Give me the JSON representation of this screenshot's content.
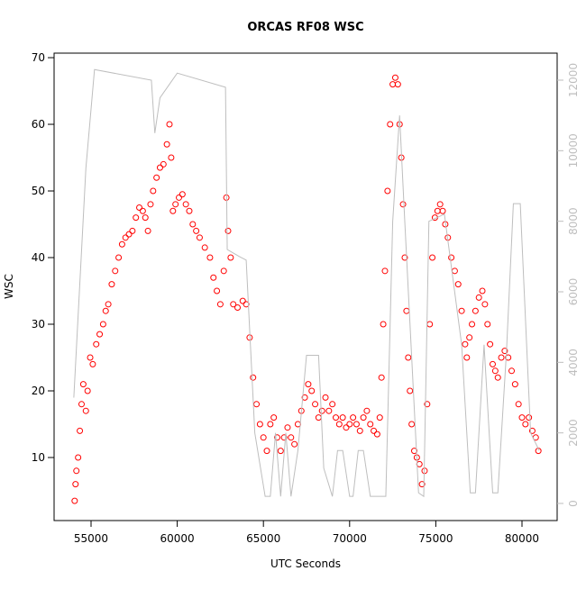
{
  "chart_data": {
    "type": "scatter",
    "title": "ORCAS RF08 WSC",
    "x_label": "UTC Seconds",
    "y_label": "WSC",
    "xlim": [
      52856,
      82040
    ],
    "xticks": [
      55000,
      60000,
      65000,
      70000,
      75000,
      80000
    ],
    "ylim": [
      0.54,
      70.68
    ],
    "yticks": [
      10,
      20,
      30,
      40,
      50,
      60,
      70
    ],
    "y2lim": [
      -485,
      12766
    ],
    "y2ticks": [
      0,
      2000,
      4000,
      6000,
      8000,
      10000,
      12000
    ],
    "series": [
      {
        "color": "#ff0000",
        "x": [
          54050,
          54100,
          54150,
          54250,
          54350,
          54450,
          54550,
          54700,
          54800,
          54950,
          55100,
          55300,
          55500,
          55700,
          55850,
          56000,
          56200,
          56400,
          56600,
          56800,
          57000,
          57200,
          57400,
          57600,
          57800,
          58000,
          58150,
          58300,
          58450,
          58600,
          58800,
          59000,
          59200,
          59400,
          59550,
          59650,
          59750,
          59900,
          60100,
          60300,
          60500,
          60700,
          60900,
          61100,
          61300,
          61600,
          61900,
          62100,
          62300,
          62500,
          62700,
          62850,
          62950,
          63100,
          63250,
          63500,
          63800,
          64000,
          64200,
          64400,
          64600,
          64800,
          65000,
          65200,
          65400,
          65600,
          65800,
          66000,
          66200,
          66400,
          66600,
          66800,
          67000,
          67200,
          67400,
          67600,
          67800,
          68000,
          68200,
          68400,
          68600,
          68800,
          69000,
          69200,
          69400,
          69600,
          69800,
          70000,
          70200,
          70400,
          70600,
          70800,
          71000,
          71200,
          71400,
          71600,
          71750,
          71850,
          71950,
          72050,
          72200,
          72350,
          72500,
          72650,
          72800,
          72900,
          73000,
          73100,
          73200,
          73300,
          73400,
          73500,
          73600,
          73750,
          73900,
          74050,
          74200,
          74350,
          74500,
          74650,
          74800,
          74950,
          75100,
          75250,
          75400,
          75550,
          75700,
          75900,
          76100,
          76300,
          76500,
          76700,
          76800,
          76950,
          77100,
          77300,
          77500,
          77700,
          77850,
          78000,
          78150,
          78300,
          78450,
          78600,
          78800,
          79000,
          79200,
          79400,
          79600,
          79800,
          80000,
          80200,
          80400,
          80600,
          80800,
          80950
        ],
        "values": [
          3.5,
          6,
          8,
          10,
          14,
          18,
          21,
          17,
          20,
          25,
          24,
          27,
          28.5,
          30,
          32,
          33,
          36,
          38,
          40,
          42,
          43,
          43.5,
          44,
          46,
          47.5,
          47,
          46,
          44,
          48,
          50,
          52,
          53.5,
          54,
          57,
          60,
          55,
          47,
          48,
          49,
          49.5,
          48,
          47,
          45,
          44,
          43,
          41.5,
          40,
          37,
          35,
          33,
          38,
          49,
          44,
          40,
          33,
          32.5,
          33.5,
          33,
          28,
          22,
          18,
          15,
          13,
          11,
          15,
          16,
          13,
          11,
          13,
          14.5,
          13,
          12,
          15,
          17,
          19,
          21,
          20,
          18,
          16,
          17,
          19,
          17,
          18,
          16,
          15,
          16,
          14.5,
          15,
          16,
          15,
          14,
          16,
          17,
          15,
          14,
          13.5,
          16,
          22,
          30,
          38,
          50,
          60,
          66,
          67,
          66,
          60,
          55,
          48,
          40,
          32,
          25,
          20,
          15,
          11,
          10,
          9,
          6,
          8,
          18,
          30,
          40,
          46,
          47,
          48,
          47,
          45,
          43,
          40,
          38,
          36,
          32,
          27,
          25,
          28,
          30,
          32,
          34,
          35,
          33,
          30,
          27,
          24,
          23,
          22,
          25,
          26,
          25,
          23,
          21,
          18,
          16,
          15,
          16,
          14,
          13,
          11
        ]
      },
      {
        "color": "#bebebe",
        "axis": "y2",
        "x": [
          54000,
          54700,
          55200,
          58500,
          58700,
          59000,
          60000,
          62800,
          62900,
          63600,
          64000,
          64500,
          65100,
          65400,
          65700,
          66000,
          66300,
          66600,
          67000,
          67500,
          68200,
          68500,
          69000,
          69300,
          69600,
          70000,
          70200,
          70500,
          70800,
          71200,
          71500,
          72100,
          72500,
          72900,
          73200,
          74000,
          74300,
          74600,
          75500,
          76500,
          77000,
          77300,
          77800,
          78300,
          78600,
          79100,
          79500,
          79900,
          80500,
          81000
        ],
        "values": [
          3000,
          9500,
          12300,
          12000,
          10500,
          11500,
          12200,
          11800,
          7200,
          7000,
          6900,
          2000,
          200,
          200,
          2000,
          200,
          2000,
          200,
          1500,
          4200,
          4200,
          1000,
          200,
          1500,
          1500,
          200,
          200,
          1500,
          1500,
          200,
          200,
          200,
          8000,
          11000,
          8000,
          300,
          200,
          8000,
          8200,
          4500,
          300,
          300,
          4500,
          300,
          300,
          4300,
          8500,
          8500,
          2000,
          1500
        ]
      }
    ]
  }
}
